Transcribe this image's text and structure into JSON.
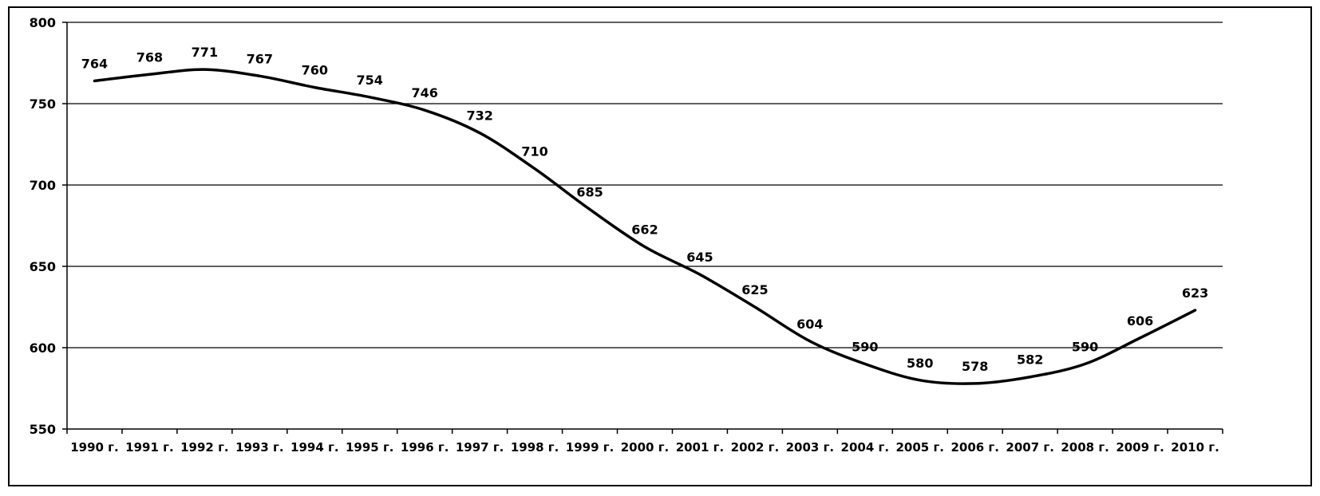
{
  "chart_data": {
    "type": "line",
    "categories": [
      "1990 г.",
      "1991 г.",
      "1992 г.",
      "1993 г.",
      "1994 г.",
      "1995 г.",
      "1996 г.",
      "1997 г.",
      "1998 г.",
      "1999 г.",
      "2000 г.",
      "2001 г.",
      "2002 г.",
      "2003 г.",
      "2004 г.",
      "2005 г.",
      "2006 г.",
      "2007 г.",
      "2008 г.",
      "2009 г.",
      "2010 г."
    ],
    "series": [
      {
        "values": [
          764,
          768,
          771,
          767,
          760,
          754,
          746,
          732,
          710,
          685,
          662,
          645,
          625,
          604,
          590,
          580,
          578,
          582,
          590,
          606,
          623
        ]
      }
    ],
    "ylim": [
      550,
      800
    ],
    "yticks": [
      550,
      600,
      650,
      700,
      750,
      800
    ],
    "grid": true,
    "legend": "none",
    "line_color": "#000000"
  }
}
